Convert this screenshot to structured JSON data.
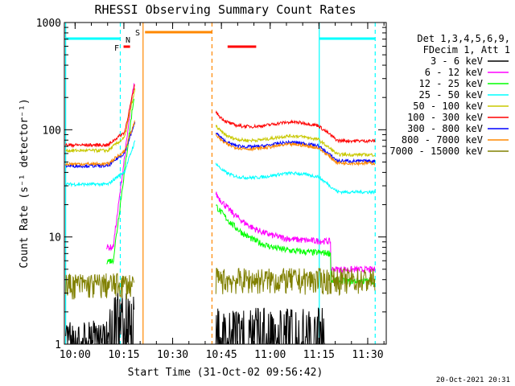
{
  "chart_data": {
    "type": "line",
    "title": "RHESSI Observing Summary Count Rates",
    "xlabel": "Start Time (31-Oct-02 09:56:42)",
    "ylabel": "Count Rate (s⁻¹ detector⁻¹)",
    "yscale": "log",
    "ylim": [
      1,
      1000
    ],
    "xlim_minutes_since_0956": [
      0,
      99
    ],
    "x_ticks": [
      "10:00",
      "10:15",
      "10:30",
      "10:45",
      "11:00",
      "11:15",
      "11:30"
    ],
    "y_ticks": [
      "1",
      "10",
      "100",
      "1000"
    ],
    "legend_header": [
      "Det 1,3,4,5,6,9,",
      "FDecim 1, Att 1"
    ],
    "series": [
      {
        "name": "3 - 6 keV",
        "color": "#000000",
        "level_before": 1.0,
        "level_after": 1.6
      },
      {
        "name": "6 - 12 keV",
        "color": "#ff00ff",
        "level_before": 8,
        "level_after": 9
      },
      {
        "name": "12 - 25 keV",
        "color": "#00ff00",
        "level_before": 6,
        "level_after": 7
      },
      {
        "name": "25 - 50 keV",
        "color": "#00ffff",
        "level_before": 31,
        "level_after": 35
      },
      {
        "name": "50 - 100 keV",
        "color": "#c8c800",
        "level_before": 64,
        "level_after": 78
      },
      {
        "name": "100 - 300 keV",
        "color": "#ff0000",
        "level_before": 72,
        "level_after": 105
      },
      {
        "name": "300 - 800 keV",
        "color": "#0000ff",
        "level_before": 46,
        "level_after": 68
      },
      {
        "name": "800 - 7000 keV",
        "color": "#ff8800",
        "level_before": 48,
        "level_after": 65
      },
      {
        "name": "7000 - 15000 keV",
        "color": "#808000",
        "level_before": 3.6,
        "level_after": 4.0
      }
    ],
    "flag_bars": [
      {
        "label": "F",
        "color": "#ff0000"
      },
      {
        "label": "N",
        "color": "#00ffff"
      },
      {
        "label": "S",
        "color": "#ff8800"
      }
    ],
    "footer_date": "20-Oct-2021 20:31"
  }
}
